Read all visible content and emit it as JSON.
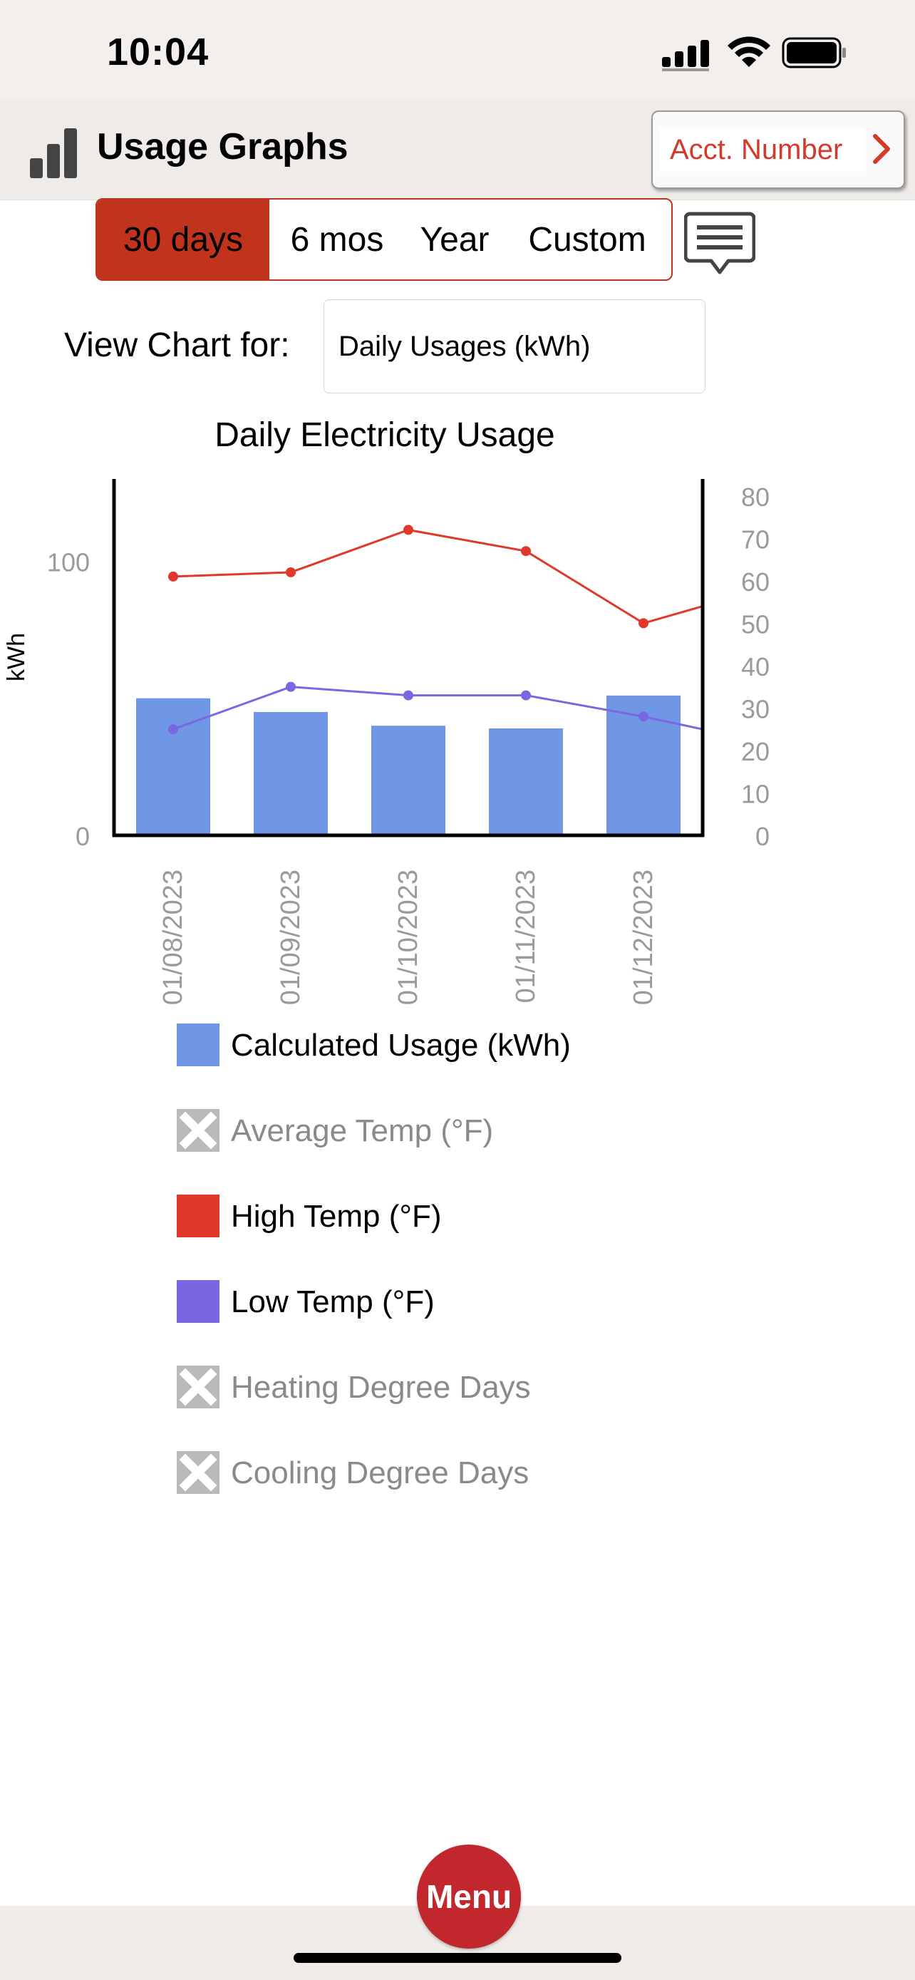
{
  "status": {
    "time": "10:04"
  },
  "nav": {
    "title": "Usage Graphs",
    "acct_label": "Acct. Number"
  },
  "range_tabs": [
    {
      "label": "30 days",
      "active": true
    },
    {
      "label": "6 mos",
      "active": false
    },
    {
      "label": "Year",
      "active": false
    },
    {
      "label": "Custom",
      "active": false
    }
  ],
  "view": {
    "label": "View Chart for:",
    "selected": "Daily Usages (kWh)"
  },
  "chart_data": {
    "type": "bar",
    "title": "Daily Electricity Usage",
    "ylabel": "kWh",
    "ylim": [
      0,
      130
    ],
    "yticks": [
      0,
      100
    ],
    "y2lim": [
      0,
      84
    ],
    "y2ticks": [
      0,
      10,
      20,
      30,
      40,
      50,
      60,
      70,
      80
    ],
    "categories": [
      "01/08/2023",
      "01/09/2023",
      "01/10/2023",
      "01/11/2023",
      "01/12/2023"
    ],
    "series": [
      {
        "name": "Calculated Usage (kWh)",
        "type": "bar",
        "axis": "left",
        "color": "#6f97e6",
        "values": [
          50,
          45,
          40,
          39,
          51
        ]
      },
      {
        "name": "High Temp (°F)",
        "type": "line",
        "axis": "right",
        "color": "#e0382b",
        "values": [
          61,
          62,
          72,
          67,
          50
        ],
        "extends_to": 54
      },
      {
        "name": "Low Temp (°F)",
        "type": "line",
        "axis": "right",
        "color": "#7a66e0",
        "values": [
          25,
          35,
          33,
          33,
          28
        ],
        "extends_to": 25
      }
    ]
  },
  "legend": [
    {
      "label": "Calculated Usage (kWh)",
      "color": "#6f97e6",
      "enabled": true
    },
    {
      "label": "Average Temp (°F)",
      "color": "#b7b9bb",
      "enabled": false
    },
    {
      "label": "High Temp (°F)",
      "color": "#e0382b",
      "enabled": true
    },
    {
      "label": "Low Temp (°F)",
      "color": "#7a66e0",
      "enabled": true
    },
    {
      "label": "Heating Degree Days",
      "color": "#b7b9bb",
      "enabled": false
    },
    {
      "label": "Cooling Degree Days",
      "color": "#b7b9bb",
      "enabled": false
    }
  ],
  "menu": {
    "label": "Menu"
  }
}
